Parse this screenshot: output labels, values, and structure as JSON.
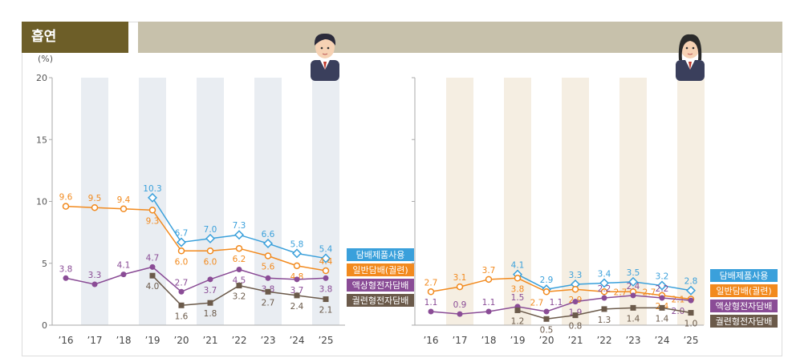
{
  "header": {
    "title": "흡연"
  },
  "colors": {
    "blue": "#3aa0db",
    "orange": "#f28a1e",
    "purple": "#8a4c96",
    "brown": "#6b5a4a",
    "stripe_left": "#e9edf2",
    "stripe_right": "#f5eee2",
    "title_bg": "#6d5e28",
    "band": "#c7c1ab"
  },
  "chart_data": [
    {
      "type": "line",
      "panel": "left (male avatar)",
      "ylabel": "(%)",
      "ylim": [
        0,
        20
      ],
      "yticks": [
        "0",
        "5",
        "10",
        "15",
        "20"
      ],
      "categories": [
        "’16",
        "’17",
        "’18",
        "’19",
        "’20",
        "’21",
        "’22",
        "’23",
        "’24",
        "’25"
      ],
      "series": [
        {
          "name": "담배제품사용",
          "color": "#3aa0db",
          "values": [
            null,
            null,
            null,
            10.3,
            6.7,
            7.0,
            7.3,
            6.6,
            5.8,
            5.4
          ],
          "labels": [
            "",
            "",
            "",
            "10.3",
            "6.7",
            "7.0",
            "7.3",
            "6.6",
            "5.8",
            "5.4"
          ]
        },
        {
          "name": "일반담배(궐련)",
          "color": "#f28a1e",
          "values": [
            9.6,
            9.5,
            9.4,
            9.3,
            6.0,
            6.0,
            6.2,
            5.6,
            4.8,
            4.4
          ],
          "labels": [
            "9.6",
            "9.5",
            "9.4",
            "9.3",
            "6.0",
            "6.0",
            "6.2",
            "5.6",
            "4.8",
            "4.4"
          ]
        },
        {
          "name": "액상형전자담배",
          "color": "#8a4c96",
          "values": [
            3.8,
            3.3,
            4.1,
            4.7,
            2.7,
            3.7,
            4.5,
            3.8,
            3.7,
            3.8
          ],
          "labels": [
            "3.8",
            "3.3",
            "4.1",
            "4.7",
            "2.7",
            "3.7",
            "4.5",
            "3.8",
            "3.7",
            "3.8"
          ]
        },
        {
          "name": "궐련형전자담배",
          "color": "#6b5a4a",
          "values": [
            null,
            null,
            null,
            4.0,
            1.6,
            1.8,
            3.2,
            2.7,
            2.4,
            2.1
          ],
          "labels": [
            "",
            "",
            "",
            "4.0",
            "1.6",
            "1.8",
            "3.2",
            "2.7",
            "2.4",
            "2.1"
          ]
        }
      ]
    },
    {
      "type": "line",
      "panel": "right (female avatar)",
      "ylim": [
        0,
        20
      ],
      "categories": [
        "’16",
        "’17",
        "’18",
        "’19",
        "’20",
        "’21",
        "’22",
        "’23",
        "’24",
        "’25"
      ],
      "series": [
        {
          "name": "담배제품사용",
          "color": "#3aa0db",
          "values": [
            null,
            null,
            null,
            4.1,
            2.9,
            3.3,
            3.4,
            3.5,
            3.2,
            2.8
          ],
          "labels": [
            "",
            "",
            "",
            "4.1",
            "2.9",
            "3.3",
            "3.4",
            "3.5",
            "3.2",
            "2.8"
          ]
        },
        {
          "name": "일반담배(궐련)",
          "color": "#f28a1e",
          "values": [
            2.7,
            3.1,
            3.7,
            3.8,
            2.7,
            2.9,
            2.7,
            2.7,
            2.4,
            2.1
          ],
          "labels": [
            "2.7",
            "3.1",
            "3.7",
            "3.8",
            "2.7",
            "2.9",
            "2.7",
            "2.7",
            "2.4",
            "2.1"
          ]
        },
        {
          "name": "액상형전자담배",
          "color": "#8a4c96",
          "values": [
            1.1,
            0.9,
            1.1,
            1.5,
            1.1,
            1.9,
            2.2,
            2.4,
            2.2,
            2.0
          ],
          "labels": [
            "1.1",
            "0.9",
            "1.1",
            "1.5",
            "1.1",
            "1.9",
            "2.2",
            "2.4",
            "2.2",
            "2.0"
          ]
        },
        {
          "name": "궐련형전자담배",
          "color": "#6b5a4a",
          "values": [
            null,
            null,
            null,
            1.2,
            0.5,
            0.8,
            1.3,
            1.4,
            1.4,
            1.0
          ],
          "labels": [
            "",
            "",
            "",
            "1.2",
            "0.5",
            "0.8",
            "1.3",
            "1.4",
            "1.4",
            "1.0"
          ]
        }
      ]
    }
  ]
}
